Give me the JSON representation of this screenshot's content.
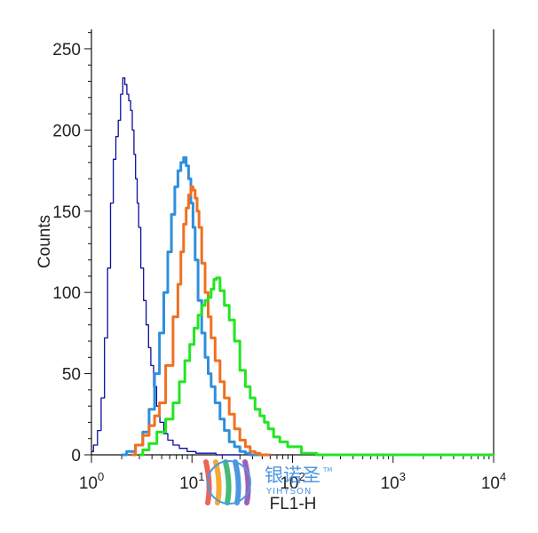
{
  "chart_data": {
    "type": "line",
    "title": "",
    "xlabel": "FL1-H",
    "ylabel": "Counts",
    "xscale": "log",
    "xlim": [
      1,
      10000
    ],
    "ylim": [
      0,
      262
    ],
    "x_ticks": [
      {
        "base": "10",
        "exp": "0"
      },
      {
        "base": "10",
        "exp": "1"
      },
      {
        "base": "10",
        "exp": "2"
      },
      {
        "base": "10",
        "exp": "3"
      },
      {
        "base": "10",
        "exp": "4"
      }
    ],
    "y_ticks": [
      "0",
      "50",
      "100",
      "150",
      "200",
      "250"
    ],
    "y_tick_values": [
      0,
      50,
      100,
      150,
      200,
      250
    ],
    "grid": false,
    "legend": "none",
    "series": [
      {
        "color": "#0d0d9e",
        "line_width": 1.3,
        "x": [
          1.0,
          1.1,
          1.2,
          1.3,
          1.4,
          1.5,
          1.6,
          1.7,
          1.8,
          1.9,
          2.0,
          2.1,
          2.2,
          2.3,
          2.4,
          2.5,
          2.6,
          2.7,
          2.8,
          2.9,
          3.0,
          3.2,
          3.4,
          3.6,
          3.8,
          4.0,
          4.3,
          4.6,
          5.0,
          5.5,
          6.0,
          7.0,
          8.0,
          10.0,
          12.0,
          15.0,
          20.0,
          30.0
        ],
        "values": [
          2,
          6,
          15,
          35,
          72,
          115,
          155,
          182,
          196,
          206,
          222,
          232,
          228,
          222,
          218,
          212,
          200,
          185,
          170,
          155,
          140,
          115,
          95,
          80,
          66,
          55,
          42,
          30,
          20,
          13,
          9,
          6,
          4,
          2,
          1,
          1,
          0,
          0
        ]
      },
      {
        "color": "#2f8fdc",
        "line_width": 3,
        "x": [
          2.0,
          2.5,
          3.0,
          3.5,
          4.0,
          4.5,
          5.0,
          5.5,
          6.0,
          6.5,
          7.0,
          7.5,
          8.0,
          8.5,
          9.0,
          9.5,
          10.0,
          10.5,
          11.0,
          12.0,
          13.0,
          14.0,
          15.0,
          16.0,
          18.0,
          20.0,
          22.0,
          25.0,
          28.0,
          32.0,
          36.0,
          40.0,
          50.0
        ],
        "values": [
          0,
          2,
          6,
          14,
          28,
          50,
          75,
          100,
          125,
          148,
          165,
          175,
          180,
          183,
          178,
          170,
          155,
          140,
          120,
          95,
          75,
          60,
          50,
          42,
          32,
          22,
          15,
          8,
          5,
          2,
          1,
          0,
          0
        ]
      },
      {
        "color": "#f07020",
        "line_width": 3,
        "x": [
          2.5,
          3.0,
          3.5,
          4.0,
          4.5,
          5.0,
          6.0,
          7.0,
          7.5,
          8.0,
          8.5,
          9.0,
          9.5,
          10.0,
          10.5,
          11.0,
          11.5,
          12.0,
          13.0,
          14.0,
          15.0,
          16.0,
          18.0,
          20.0,
          22.0,
          25.0,
          28.0,
          32.0,
          36.0,
          40.0,
          45.0,
          50.0,
          60.0
        ],
        "values": [
          0,
          6,
          12,
          18,
          24,
          32,
          55,
          85,
          105,
          125,
          142,
          152,
          160,
          165,
          163,
          158,
          150,
          140,
          118,
          100,
          85,
          72,
          58,
          45,
          35,
          25,
          16,
          9,
          5,
          2,
          1,
          0,
          0
        ]
      },
      {
        "color": "#22e622",
        "line_width": 3,
        "x": [
          3.0,
          3.5,
          4.0,
          5.0,
          6.0,
          7.0,
          8.0,
          9.0,
          10.0,
          11.0,
          12.0,
          13.0,
          14.0,
          15.0,
          16.0,
          17.0,
          18.0,
          20.0,
          22.0,
          25.0,
          28.0,
          32.0,
          36.0,
          40.0,
          45.0,
          50.0,
          55.0,
          60.0,
          70.0,
          80.0,
          100.0,
          150.0,
          200.0,
          1000.0,
          10000.0
        ],
        "values": [
          0,
          3,
          7,
          14,
          22,
          32,
          45,
          58,
          68,
          78,
          86,
          92,
          95,
          97,
          102,
          108,
          109,
          101,
          92,
          83,
          70,
          52,
          42,
          35,
          28,
          24,
          20,
          16,
          11,
          8,
          5,
          1,
          0,
          0,
          0
        ]
      }
    ]
  },
  "watermark": {
    "cn": "银诺圣",
    "en": "YIHYSON",
    "tm": "TM",
    "colors": [
      "#e84c3d",
      "#f39c12",
      "#27ae60",
      "#2e86de",
      "#8e44ad"
    ]
  }
}
